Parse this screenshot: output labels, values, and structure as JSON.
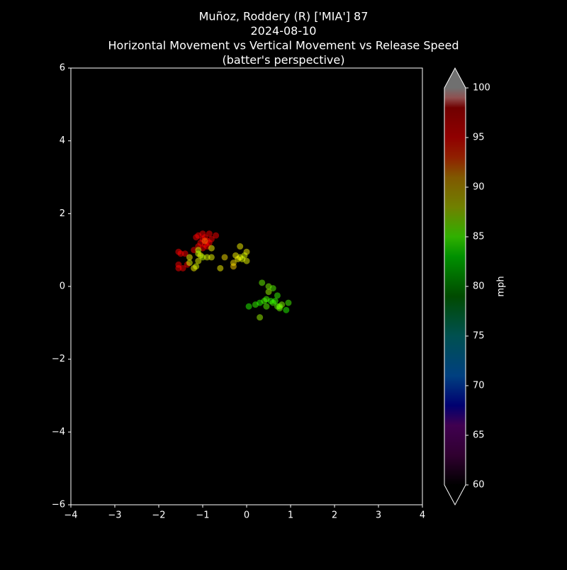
{
  "chart_data": {
    "type": "scatter",
    "title": [
      "Muñoz, Roddery (R) ['MIA'] 87",
      "2024-08-10",
      "Horizontal Movement vs Vertical Movement vs Release Speed",
      "(batter's perspective)"
    ],
    "xlim": [
      -4,
      4
    ],
    "xticks": [
      {
        "value": -4,
        "label": "−4"
      },
      {
        "value": -3,
        "label": "−3"
      },
      {
        "value": -2,
        "label": "−2"
      },
      {
        "value": -1,
        "label": "−1"
      },
      0,
      1,
      2,
      3,
      4
    ],
    "ylim": [
      -6,
      6
    ],
    "yticks": [
      {
        "value": -6,
        "label": "−6"
      },
      {
        "value": -4,
        "label": "−4"
      },
      {
        "value": -2,
        "label": "−2"
      },
      0,
      2,
      4,
      6
    ],
    "x": [
      -1.0,
      -0.9,
      -1.1,
      -0.85,
      -0.95,
      -1.05,
      -0.9,
      -1.1,
      -0.8,
      -0.7,
      -1.0,
      -1.15,
      -0.95,
      -1.5,
      -1.55,
      -1.4,
      -1.55,
      -1.45,
      -1.35,
      -1.55,
      -1.2,
      -0.85,
      -1.0,
      -0.95,
      -1.1,
      -1.05,
      -1.0,
      -0.9,
      -1.1,
      -1.2,
      -1.15,
      -1.3,
      -0.8,
      -0.8,
      -1.1,
      -1.3,
      -0.6,
      -0.5,
      -0.3,
      -0.3,
      -0.25,
      -0.15,
      -0.1,
      -0.15,
      0.0,
      0.0,
      -0.05,
      -0.2,
      0.35,
      0.5,
      0.6,
      0.5,
      0.05,
      0.2,
      0.3,
      0.4,
      0.45,
      0.55,
      0.6,
      0.7,
      0.7,
      0.75,
      0.8,
      0.9,
      0.95,
      0.3,
      0.45,
      0.65,
      0.75
    ],
    "y": [
      1.3,
      1.25,
      1.4,
      1.45,
      1.35,
      1.2,
      1.1,
      1.1,
      1.3,
      1.4,
      1.45,
      1.35,
      1.15,
      0.9,
      0.95,
      0.9,
      0.6,
      0.5,
      0.6,
      0.5,
      1.0,
      1.2,
      1.05,
      1.25,
      0.9,
      0.85,
      0.8,
      0.8,
      0.7,
      0.5,
      0.55,
      0.8,
      0.8,
      1.05,
      1.0,
      0.65,
      0.5,
      0.8,
      0.55,
      0.65,
      0.85,
      0.8,
      0.75,
      1.1,
      0.95,
      0.7,
      0.85,
      0.75,
      0.1,
      0.0,
      -0.05,
      -0.15,
      -0.55,
      -0.5,
      -0.45,
      -0.4,
      -0.55,
      -0.4,
      -0.45,
      -0.25,
      -0.55,
      -0.6,
      -0.5,
      -0.65,
      -0.45,
      -0.85,
      -0.35,
      -0.4,
      -0.55
    ],
    "c": [
      96,
      95.5,
      96,
      95,
      96.5,
      95.5,
      95,
      96,
      95.5,
      96,
      95,
      96,
      95.5,
      96,
      95.5,
      95,
      96,
      95.5,
      95,
      96,
      95,
      96,
      95.5,
      92,
      88,
      88.5,
      87.5,
      88,
      88.5,
      89,
      88,
      89,
      88.5,
      89,
      87.5,
      88,
      89,
      89.5,
      90,
      89.5,
      89,
      88.5,
      88,
      89,
      89,
      88.5,
      88,
      89,
      86,
      86.5,
      85.5,
      87,
      84,
      84.5,
      84,
      85,
      85.5,
      84,
      85,
      84.5,
      85.5,
      86,
      86.5,
      84,
      85,
      87,
      85,
      84.5,
      86
    ],
    "clim": [
      60,
      100
    ],
    "cticks": [
      60,
      65,
      70,
      75,
      80,
      85,
      90,
      95,
      100
    ],
    "clabel": "mph",
    "colormap": [
      [
        60,
        "#000000"
      ],
      [
        63,
        "#300030"
      ],
      [
        66,
        "#400050"
      ],
      [
        68,
        "#000070"
      ],
      [
        71,
        "#004080"
      ],
      [
        75,
        "#005050"
      ],
      [
        79,
        "#004a00"
      ],
      [
        83,
        "#009000"
      ],
      [
        85,
        "#30b000"
      ],
      [
        88,
        "#708000"
      ],
      [
        91,
        "#805800"
      ],
      [
        93,
        "#902000"
      ],
      [
        95,
        "#900000"
      ],
      [
        98,
        "#700000"
      ],
      [
        99,
        "#905050"
      ],
      [
        100,
        "#707070"
      ]
    ],
    "over_color": "#707070",
    "under_color": "#000000"
  }
}
